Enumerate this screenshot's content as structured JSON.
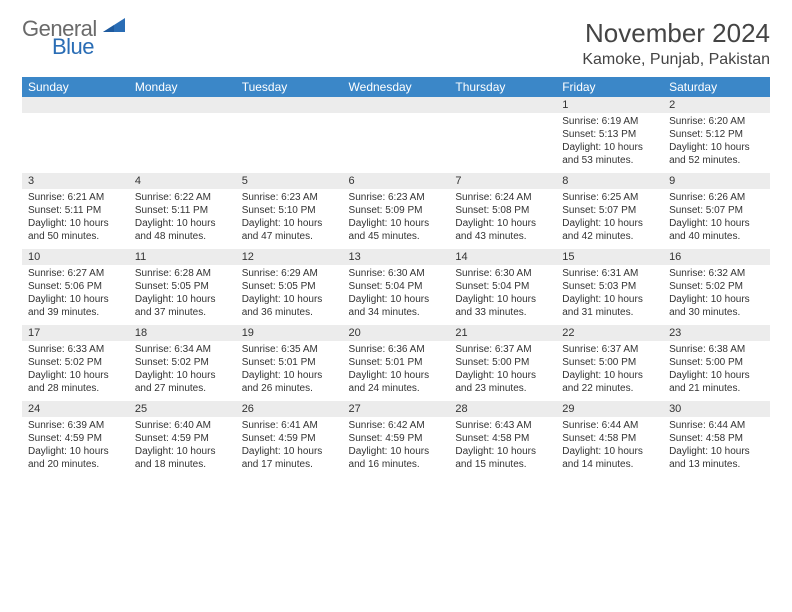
{
  "logo": {
    "part1": "General",
    "part2": "Blue"
  },
  "title": "November 2024",
  "location": "Kamoke, Punjab, Pakistan",
  "colors": {
    "header_bg": "#3b87c8",
    "header_fg": "#ffffff",
    "band_bg": "#ececec",
    "text": "#333333",
    "logo_gray": "#6a6a6a",
    "logo_blue": "#2a6db5"
  },
  "day_names": [
    "Sunday",
    "Monday",
    "Tuesday",
    "Wednesday",
    "Thursday",
    "Friday",
    "Saturday"
  ],
  "labels": {
    "sunrise": "Sunrise:",
    "sunset": "Sunset:",
    "daylight": "Daylight:"
  },
  "weeks": [
    [
      null,
      null,
      null,
      null,
      null,
      {
        "n": "1",
        "sunrise": "6:19 AM",
        "sunset": "5:13 PM",
        "daylight": "10 hours and 53 minutes."
      },
      {
        "n": "2",
        "sunrise": "6:20 AM",
        "sunset": "5:12 PM",
        "daylight": "10 hours and 52 minutes."
      }
    ],
    [
      {
        "n": "3",
        "sunrise": "6:21 AM",
        "sunset": "5:11 PM",
        "daylight": "10 hours and 50 minutes."
      },
      {
        "n": "4",
        "sunrise": "6:22 AM",
        "sunset": "5:11 PM",
        "daylight": "10 hours and 48 minutes."
      },
      {
        "n": "5",
        "sunrise": "6:23 AM",
        "sunset": "5:10 PM",
        "daylight": "10 hours and 47 minutes."
      },
      {
        "n": "6",
        "sunrise": "6:23 AM",
        "sunset": "5:09 PM",
        "daylight": "10 hours and 45 minutes."
      },
      {
        "n": "7",
        "sunrise": "6:24 AM",
        "sunset": "5:08 PM",
        "daylight": "10 hours and 43 minutes."
      },
      {
        "n": "8",
        "sunrise": "6:25 AM",
        "sunset": "5:07 PM",
        "daylight": "10 hours and 42 minutes."
      },
      {
        "n": "9",
        "sunrise": "6:26 AM",
        "sunset": "5:07 PM",
        "daylight": "10 hours and 40 minutes."
      }
    ],
    [
      {
        "n": "10",
        "sunrise": "6:27 AM",
        "sunset": "5:06 PM",
        "daylight": "10 hours and 39 minutes."
      },
      {
        "n": "11",
        "sunrise": "6:28 AM",
        "sunset": "5:05 PM",
        "daylight": "10 hours and 37 minutes."
      },
      {
        "n": "12",
        "sunrise": "6:29 AM",
        "sunset": "5:05 PM",
        "daylight": "10 hours and 36 minutes."
      },
      {
        "n": "13",
        "sunrise": "6:30 AM",
        "sunset": "5:04 PM",
        "daylight": "10 hours and 34 minutes."
      },
      {
        "n": "14",
        "sunrise": "6:30 AM",
        "sunset": "5:04 PM",
        "daylight": "10 hours and 33 minutes."
      },
      {
        "n": "15",
        "sunrise": "6:31 AM",
        "sunset": "5:03 PM",
        "daylight": "10 hours and 31 minutes."
      },
      {
        "n": "16",
        "sunrise": "6:32 AM",
        "sunset": "5:02 PM",
        "daylight": "10 hours and 30 minutes."
      }
    ],
    [
      {
        "n": "17",
        "sunrise": "6:33 AM",
        "sunset": "5:02 PM",
        "daylight": "10 hours and 28 minutes."
      },
      {
        "n": "18",
        "sunrise": "6:34 AM",
        "sunset": "5:02 PM",
        "daylight": "10 hours and 27 minutes."
      },
      {
        "n": "19",
        "sunrise": "6:35 AM",
        "sunset": "5:01 PM",
        "daylight": "10 hours and 26 minutes."
      },
      {
        "n": "20",
        "sunrise": "6:36 AM",
        "sunset": "5:01 PM",
        "daylight": "10 hours and 24 minutes."
      },
      {
        "n": "21",
        "sunrise": "6:37 AM",
        "sunset": "5:00 PM",
        "daylight": "10 hours and 23 minutes."
      },
      {
        "n": "22",
        "sunrise": "6:37 AM",
        "sunset": "5:00 PM",
        "daylight": "10 hours and 22 minutes."
      },
      {
        "n": "23",
        "sunrise": "6:38 AM",
        "sunset": "5:00 PM",
        "daylight": "10 hours and 21 minutes."
      }
    ],
    [
      {
        "n": "24",
        "sunrise": "6:39 AM",
        "sunset": "4:59 PM",
        "daylight": "10 hours and 20 minutes."
      },
      {
        "n": "25",
        "sunrise": "6:40 AM",
        "sunset": "4:59 PM",
        "daylight": "10 hours and 18 minutes."
      },
      {
        "n": "26",
        "sunrise": "6:41 AM",
        "sunset": "4:59 PM",
        "daylight": "10 hours and 17 minutes."
      },
      {
        "n": "27",
        "sunrise": "6:42 AM",
        "sunset": "4:59 PM",
        "daylight": "10 hours and 16 minutes."
      },
      {
        "n": "28",
        "sunrise": "6:43 AM",
        "sunset": "4:58 PM",
        "daylight": "10 hours and 15 minutes."
      },
      {
        "n": "29",
        "sunrise": "6:44 AM",
        "sunset": "4:58 PM",
        "daylight": "10 hours and 14 minutes."
      },
      {
        "n": "30",
        "sunrise": "6:44 AM",
        "sunset": "4:58 PM",
        "daylight": "10 hours and 13 minutes."
      }
    ]
  ]
}
